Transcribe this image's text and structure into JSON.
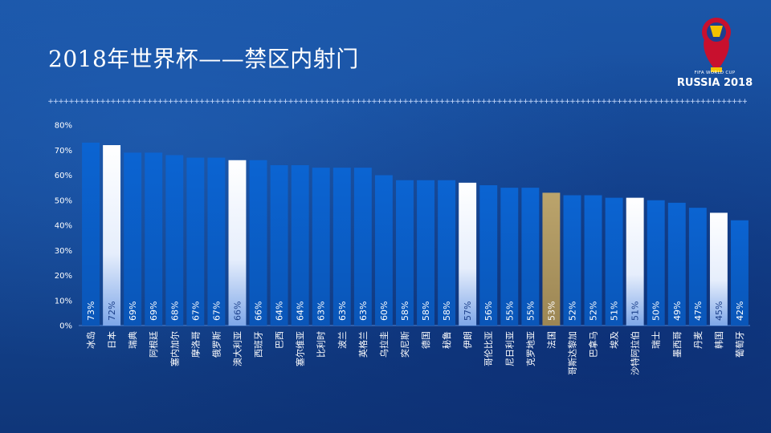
{
  "title": "2018年世界杯——禁区内射门",
  "logo": {
    "line1": "FIFA WORLD CUP",
    "line2": "RUSSIA 2018",
    "icon": "world-cup-trophy-logo-icon"
  },
  "colors": {
    "bar": "#0a5fc8",
    "highlight_white": "#ffffff",
    "highlight_gold": "#b29a62",
    "text": "#ffffff"
  },
  "chart_data": {
    "type": "bar",
    "categories": [
      "冰岛",
      "日本",
      "瑞典",
      "阿根廷",
      "塞内加尔",
      "摩洛哥",
      "俄罗斯",
      "澳大利亚",
      "西班牙",
      "巴西",
      "塞尔维亚",
      "比利时",
      "波兰",
      "英格兰",
      "乌拉圭",
      "突尼斯",
      "德国",
      "秘鲁",
      "伊朗",
      "哥伦比亚",
      "尼日利亚",
      "克罗地亚",
      "法国",
      "哥斯达黎加",
      "巴拿马",
      "埃及",
      "沙特阿拉伯",
      "瑞士",
      "墨西哥",
      "丹麦",
      "韩国",
      "葡萄牙"
    ],
    "values": [
      73,
      72,
      69,
      69,
      68,
      67,
      67,
      66,
      66,
      64,
      64,
      63,
      63,
      63,
      60,
      58,
      58,
      58,
      57,
      56,
      55,
      55,
      53,
      52,
      52,
      51,
      51,
      50,
      49,
      47,
      45,
      42
    ],
    "value_labels": [
      "73%",
      "72%",
      "69%",
      "69%",
      "68%",
      "67%",
      "67%",
      "66%",
      "66%",
      "64%",
      "64%",
      "63%",
      "63%",
      "63%",
      "60%",
      "58%",
      "58%",
      "58%",
      "57%",
      "56%",
      "55%",
      "55%",
      "53%",
      "52%",
      "52%",
      "51%",
      "51%",
      "50%",
      "49%",
      "47%",
      "45%",
      "42%"
    ],
    "highlight": [
      "none",
      "white",
      "none",
      "none",
      "none",
      "none",
      "none",
      "white",
      "none",
      "none",
      "none",
      "none",
      "none",
      "none",
      "none",
      "none",
      "none",
      "none",
      "white",
      "none",
      "none",
      "none",
      "gold",
      "none",
      "none",
      "none",
      "white",
      "none",
      "none",
      "none",
      "white",
      "none"
    ],
    "y_ticks": [
      "0%",
      "10%",
      "20%",
      "30%",
      "40%",
      "50%",
      "60%",
      "70%",
      "80%"
    ],
    "ylim": [
      0,
      80
    ],
    "grid": false,
    "legend": "none"
  }
}
